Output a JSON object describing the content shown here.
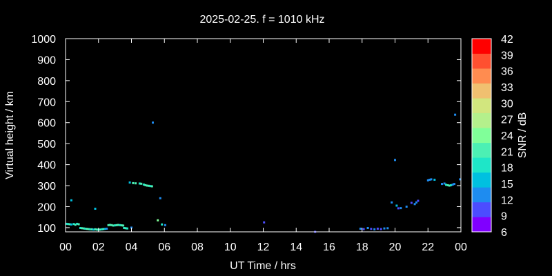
{
  "chart_data": {
    "type": "scatter",
    "title": "2025-02-25. f = 1010 kHz",
    "xlabel": "UT Time / hrs",
    "ylabel": "Virtual height / km",
    "colorbar_label": "SNR / dB",
    "xlim": [
      0,
      24
    ],
    "ylim": [
      80,
      1000
    ],
    "xticks": [
      "00",
      "02",
      "04",
      "06",
      "08",
      "10",
      "12",
      "14",
      "16",
      "18",
      "20",
      "22",
      "00"
    ],
    "yticks": [
      100,
      200,
      300,
      400,
      500,
      600,
      700,
      800,
      900,
      1000
    ],
    "colorbar": {
      "min": 6,
      "max": 42,
      "ticks": [
        6,
        9,
        12,
        15,
        18,
        21,
        24,
        27,
        30,
        33,
        36,
        39,
        42
      ],
      "colors": [
        "#8000ff",
        "#4c4cff",
        "#1e8cf0",
        "#00c0e0",
        "#1ee6c8",
        "#4cf0b4",
        "#80ff99",
        "#b4f08c",
        "#d2e67e",
        "#f0c070",
        "#ff8c50",
        "#ff5030",
        "#ff0000"
      ]
    },
    "grid": false,
    "legend": "none",
    "points": [
      {
        "x": 0.05,
        "y": 118,
        "snr": 19
      },
      {
        "x": 0.15,
        "y": 117,
        "snr": 18
      },
      {
        "x": 0.25,
        "y": 116,
        "snr": 20
      },
      {
        "x": 0.35,
        "y": 115,
        "snr": 17
      },
      {
        "x": 0.35,
        "y": 230,
        "snr": 16
      },
      {
        "x": 0.5,
        "y": 117,
        "snr": 19
      },
      {
        "x": 0.6,
        "y": 114,
        "snr": 21
      },
      {
        "x": 0.7,
        "y": 118,
        "snr": 18
      },
      {
        "x": 0.8,
        "y": 116,
        "snr": 20
      },
      {
        "x": 0.9,
        "y": 98,
        "snr": 19
      },
      {
        "x": 1.0,
        "y": 97,
        "snr": 21
      },
      {
        "x": 1.1,
        "y": 96,
        "snr": 20
      },
      {
        "x": 1.2,
        "y": 95,
        "snr": 18
      },
      {
        "x": 1.3,
        "y": 94,
        "snr": 22
      },
      {
        "x": 1.4,
        "y": 93,
        "snr": 20
      },
      {
        "x": 1.5,
        "y": 92,
        "snr": 19
      },
      {
        "x": 1.6,
        "y": 92,
        "snr": 21
      },
      {
        "x": 1.7,
        "y": 91,
        "snr": 17
      },
      {
        "x": 1.8,
        "y": 190,
        "snr": 16
      },
      {
        "x": 1.8,
        "y": 92,
        "snr": 22
      },
      {
        "x": 1.9,
        "y": 91,
        "snr": 20
      },
      {
        "x": 2.0,
        "y": 90,
        "snr": 19
      },
      {
        "x": 2.1,
        "y": 91,
        "snr": 21
      },
      {
        "x": 2.2,
        "y": 92,
        "snr": 18
      },
      {
        "x": 2.3,
        "y": 93,
        "snr": 20
      },
      {
        "x": 2.4,
        "y": 94,
        "snr": 17
      },
      {
        "x": 2.5,
        "y": 95,
        "snr": 12
      },
      {
        "x": 2.6,
        "y": 112,
        "snr": 22
      },
      {
        "x": 2.7,
        "y": 113,
        "snr": 21
      },
      {
        "x": 2.8,
        "y": 112,
        "snr": 20
      },
      {
        "x": 2.9,
        "y": 110,
        "snr": 22
      },
      {
        "x": 3.0,
        "y": 111,
        "snr": 19
      },
      {
        "x": 3.1,
        "y": 112,
        "snr": 21
      },
      {
        "x": 3.2,
        "y": 113,
        "snr": 20
      },
      {
        "x": 3.3,
        "y": 112,
        "snr": 18
      },
      {
        "x": 3.4,
        "y": 111,
        "snr": 22
      },
      {
        "x": 3.5,
        "y": 110,
        "snr": 20
      },
      {
        "x": 3.55,
        "y": 98,
        "snr": 18
      },
      {
        "x": 3.65,
        "y": 97,
        "snr": 20
      },
      {
        "x": 3.75,
        "y": 96,
        "snr": 19
      },
      {
        "x": 4.0,
        "y": 100,
        "snr": 12
      },
      {
        "x": 3.9,
        "y": 315,
        "snr": 17
      },
      {
        "x": 4.1,
        "y": 312,
        "snr": 20
      },
      {
        "x": 4.25,
        "y": 311,
        "snr": 22
      },
      {
        "x": 4.5,
        "y": 310,
        "snr": 19
      },
      {
        "x": 4.6,
        "y": 309,
        "snr": 21
      },
      {
        "x": 4.75,
        "y": 305,
        "snr": 18
      },
      {
        "x": 4.85,
        "y": 302,
        "snr": 20
      },
      {
        "x": 4.95,
        "y": 300,
        "snr": 22
      },
      {
        "x": 5.05,
        "y": 299,
        "snr": 21
      },
      {
        "x": 5.15,
        "y": 298,
        "snr": 19
      },
      {
        "x": 5.25,
        "y": 297,
        "snr": 22
      },
      {
        "x": 5.3,
        "y": 600,
        "snr": 12
      },
      {
        "x": 5.6,
        "y": 135,
        "snr": 25
      },
      {
        "x": 5.75,
        "y": 240,
        "snr": 12
      },
      {
        "x": 5.85,
        "y": 115,
        "snr": 18
      },
      {
        "x": 6.05,
        "y": 112,
        "snr": 12
      },
      {
        "x": 12.05,
        "y": 125,
        "snr": 11
      },
      {
        "x": 15.15,
        "y": 80,
        "snr": 10
      },
      {
        "x": 17.9,
        "y": 95,
        "snr": 12
      },
      {
        "x": 18.1,
        "y": 93,
        "snr": 11
      },
      {
        "x": 18.35,
        "y": 98,
        "snr": 13
      },
      {
        "x": 18.55,
        "y": 94,
        "snr": 11
      },
      {
        "x": 18.75,
        "y": 92,
        "snr": 12
      },
      {
        "x": 18.95,
        "y": 95,
        "snr": 10
      },
      {
        "x": 19.15,
        "y": 93,
        "snr": 11
      },
      {
        "x": 19.35,
        "y": 96,
        "snr": 13
      },
      {
        "x": 19.55,
        "y": 97,
        "snr": 12
      },
      {
        "x": 19.8,
        "y": 220,
        "snr": 12
      },
      {
        "x": 20.0,
        "y": 422,
        "snr": 13
      },
      {
        "x": 20.1,
        "y": 205,
        "snr": 15
      },
      {
        "x": 20.2,
        "y": 192,
        "snr": 11
      },
      {
        "x": 20.35,
        "y": 193,
        "snr": 12
      },
      {
        "x": 20.7,
        "y": 200,
        "snr": 13
      },
      {
        "x": 21.0,
        "y": 218,
        "snr": 11
      },
      {
        "x": 21.2,
        "y": 212,
        "snr": 14
      },
      {
        "x": 21.3,
        "y": 220,
        "snr": 12
      },
      {
        "x": 21.4,
        "y": 228,
        "snr": 11
      },
      {
        "x": 22.0,
        "y": 325,
        "snr": 12
      },
      {
        "x": 22.1,
        "y": 328,
        "snr": 13
      },
      {
        "x": 22.2,
        "y": 330,
        "snr": 12
      },
      {
        "x": 22.4,
        "y": 328,
        "snr": 16
      },
      {
        "x": 22.85,
        "y": 308,
        "snr": 13
      },
      {
        "x": 23.0,
        "y": 310,
        "snr": 12
      },
      {
        "x": 23.1,
        "y": 304,
        "snr": 19
      },
      {
        "x": 23.2,
        "y": 302,
        "snr": 21
      },
      {
        "x": 23.3,
        "y": 300,
        "snr": 20
      },
      {
        "x": 23.4,
        "y": 302,
        "snr": 18
      },
      {
        "x": 23.5,
        "y": 305,
        "snr": 14
      },
      {
        "x": 23.6,
        "y": 308,
        "snr": 13
      },
      {
        "x": 23.65,
        "y": 638,
        "snr": 12
      },
      {
        "x": 23.95,
        "y": 330,
        "snr": 14
      }
    ]
  }
}
